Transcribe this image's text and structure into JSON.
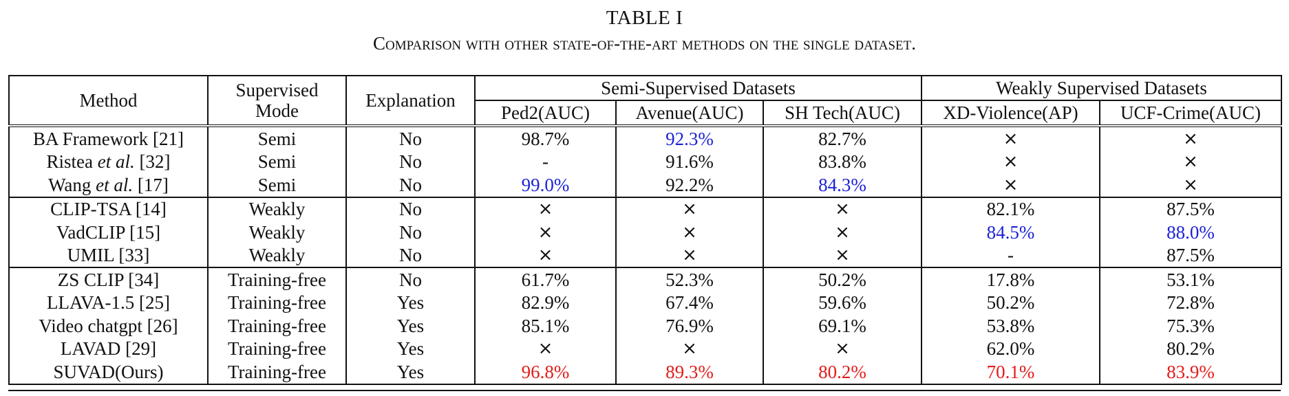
{
  "caption": {
    "label": "TABLE I",
    "text": "Comparison with other state-of-the-art methods on the single dataset."
  },
  "header": {
    "method": "Method",
    "supervised_mode_line1": "Supervised",
    "supervised_mode_line2": "Mode",
    "explanation": "Explanation",
    "group_semi": "Semi-Supervised Datasets",
    "group_weak": "Weakly Supervised Datasets",
    "columns": [
      "Ped2(AUC)",
      "Avenue(AUC)",
      "SH Tech(AUC)",
      "XD-Violence(AP)",
      "UCF-Crime(AUC)"
    ]
  },
  "colors": {
    "best_supervised": "#1c22d6",
    "best_training_free": "#e41b1b"
  },
  "rows": [
    {
      "method": "BA Framework [21]",
      "mode": "Semi",
      "explanation": "No",
      "cells": [
        "98.7%",
        "92.3%",
        "82.7%",
        "×",
        "×"
      ],
      "style": [
        "",
        "blue",
        "",
        "cross",
        "cross"
      ]
    },
    {
      "method_pre": "Ristea ",
      "method_em": "et al.",
      "method_post": " [32]",
      "mode": "Semi",
      "explanation": "No",
      "cells": [
        "-",
        "91.6%",
        "83.8%",
        "×",
        "×"
      ],
      "style": [
        "",
        "",
        "",
        "cross",
        "cross"
      ]
    },
    {
      "method_pre": "Wang ",
      "method_em": "et al.",
      "method_post": " [17]",
      "mode": "Semi",
      "explanation": "No",
      "cells": [
        "99.0%",
        "92.2%",
        "84.3%",
        "×",
        "×"
      ],
      "style": [
        "blue",
        "",
        "blue",
        "cross",
        "cross"
      ]
    },
    {
      "method": "CLIP-TSA [14]",
      "mode": "Weakly",
      "explanation": "No",
      "cells": [
        "×",
        "×",
        "×",
        "82.1%",
        "87.5%"
      ],
      "style": [
        "cross",
        "cross",
        "cross",
        "",
        ""
      ]
    },
    {
      "method": "VadCLIP [15]",
      "mode": "Weakly",
      "explanation": "No",
      "cells": [
        "×",
        "×",
        "×",
        "84.5%",
        "88.0%"
      ],
      "style": [
        "cross",
        "cross",
        "cross",
        "blue",
        "blue"
      ]
    },
    {
      "method": "UMIL [33]",
      "mode": "Weakly",
      "explanation": "No",
      "cells": [
        "×",
        "×",
        "×",
        "-",
        "87.5%"
      ],
      "style": [
        "cross",
        "cross",
        "cross",
        "",
        ""
      ]
    },
    {
      "method": "ZS CLIP [34]",
      "mode": "Training-free",
      "explanation": "No",
      "cells": [
        "61.7%",
        "52.3%",
        "50.2%",
        "17.8%",
        "53.1%"
      ],
      "style": [
        "",
        "",
        "",
        "",
        ""
      ]
    },
    {
      "method": "LLAVA-1.5 [25]",
      "mode": "Training-free",
      "explanation": "Yes",
      "cells": [
        "82.9%",
        "67.4%",
        "59.6%",
        "50.2%",
        "72.8%"
      ],
      "style": [
        "",
        "",
        "",
        "",
        ""
      ]
    },
    {
      "method": "Video chatgpt [26]",
      "mode": "Training-free",
      "explanation": "Yes",
      "cells": [
        "85.1%",
        "76.9%",
        "69.1%",
        "53.8%",
        "75.3%"
      ],
      "style": [
        "",
        "",
        "",
        "",
        ""
      ]
    },
    {
      "method": "LAVAD [29]",
      "mode": "Training-free",
      "explanation": "Yes",
      "cells": [
        "×",
        "×",
        "×",
        "62.0%",
        "80.2%"
      ],
      "style": [
        "cross",
        "cross",
        "cross",
        "",
        ""
      ]
    },
    {
      "method": "SUVAD(Ours)",
      "mode": "Training-free",
      "explanation": "Yes",
      "cells": [
        "96.8%",
        "89.3%",
        "80.2%",
        "70.1%",
        "83.9%"
      ],
      "style": [
        "red",
        "red",
        "red",
        "red",
        "red"
      ]
    }
  ]
}
